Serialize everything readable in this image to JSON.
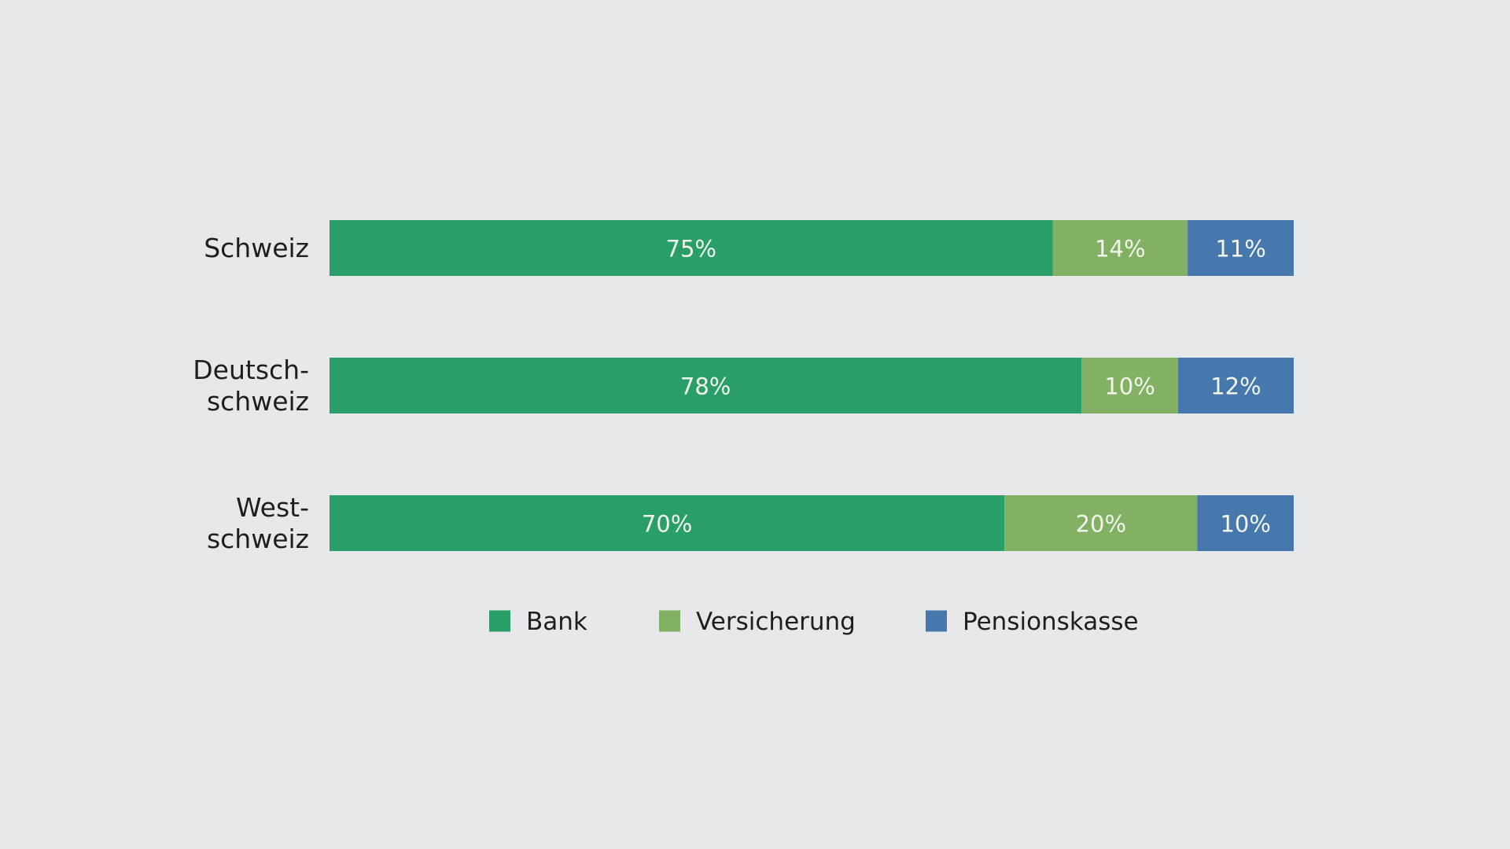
{
  "chart_data": {
    "type": "bar",
    "orientation": "horizontal",
    "stacked": true,
    "categories": [
      [
        "Schweiz"
      ],
      [
        "Deutsch-",
        "schweiz"
      ],
      [
        "West-",
        "schweiz"
      ]
    ],
    "series": [
      {
        "name": "Bank",
        "color": "#2a9e68",
        "values": [
          75,
          78,
          70
        ],
        "labels": [
          "75%",
          "78%",
          "70%"
        ]
      },
      {
        "name": "Versicherung",
        "color": "#82b163",
        "values": [
          14,
          10,
          20
        ],
        "labels": [
          "14%",
          "10%",
          "20%"
        ]
      },
      {
        "name": "Pensionskasse",
        "color": "#4677ad",
        "values": [
          11,
          12,
          10
        ],
        "labels": [
          "11%",
          "12%",
          "10%"
        ]
      }
    ],
    "xlim": [
      0,
      100
    ],
    "legend_position": "bottom",
    "grid": false,
    "title": "",
    "xlabel": "",
    "ylabel": ""
  }
}
